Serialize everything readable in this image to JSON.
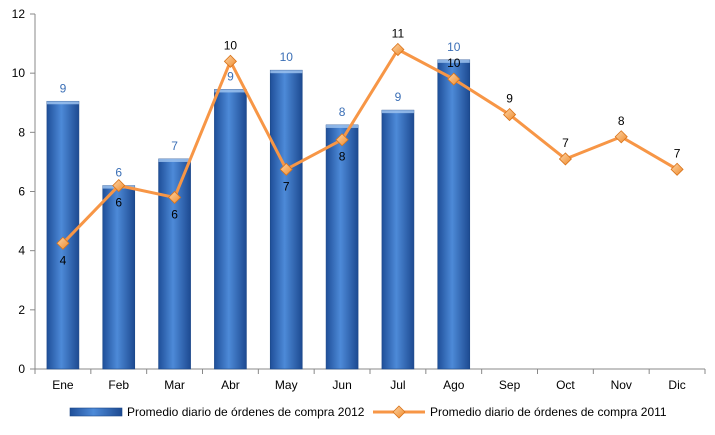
{
  "chart_data": {
    "type": "bar",
    "categories": [
      "Ene",
      "Feb",
      "Mar",
      "Abr",
      "May",
      "Jun",
      "Jul",
      "Ago",
      "Sep",
      "Oct",
      "Nov",
      "Dic"
    ],
    "ylim": [
      0,
      12
    ],
    "yticks": [
      "0",
      "2",
      "4",
      "6",
      "8",
      "10",
      "12"
    ],
    "grid": false,
    "legend_position": "bottom",
    "series": [
      {
        "name": "Promedio diario de órdenes de compra 2012",
        "type": "bar",
        "color": "#2f69b8",
        "values": [
          9.05,
          6.2,
          7.1,
          9.45,
          10.1,
          8.25,
          8.75,
          10.45,
          null,
          null,
          null,
          null
        ],
        "labels": [
          "9",
          "6",
          "7",
          "9",
          "10",
          "8",
          "9",
          "10",
          "",
          "",
          "",
          ""
        ]
      },
      {
        "name": "Promedio diario de órdenes de compra 2011",
        "type": "line",
        "color": "#f79646",
        "values": [
          4.25,
          6.2,
          5.8,
          10.4,
          6.75,
          7.75,
          10.8,
          9.8,
          8.6,
          7.1,
          7.85,
          6.75
        ],
        "labels": [
          "4",
          "6",
          "6",
          "10",
          "7",
          "8",
          "11",
          "10",
          "9",
          "7",
          "8",
          "7"
        ]
      }
    ]
  }
}
